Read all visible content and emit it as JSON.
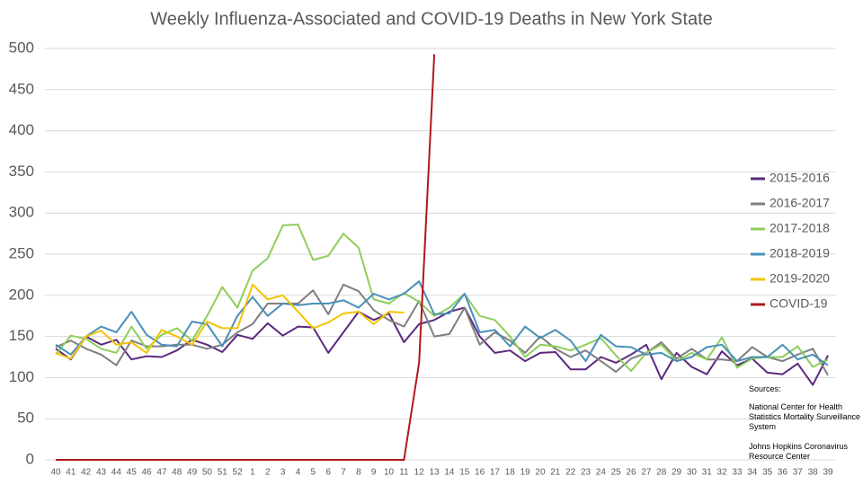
{
  "chart_data": {
    "type": "line",
    "title": "Weekly Influenza-Associated and COVID-19 Deaths in New York State",
    "categories": [
      "40",
      "41",
      "42",
      "43",
      "44",
      "45",
      "46",
      "47",
      "48",
      "49",
      "50",
      "51",
      "52",
      "1",
      "2",
      "3",
      "4",
      "5",
      "6",
      "7",
      "8",
      "9",
      "10",
      "11",
      "12",
      "13",
      "14",
      "15",
      "16",
      "17",
      "18",
      "19",
      "20",
      "21",
      "22",
      "23",
      "24",
      "25",
      "26",
      "27",
      "28",
      "29",
      "30",
      "31",
      "32",
      "33",
      "34",
      "35",
      "36",
      "37",
      "38",
      "39"
    ],
    "series": [
      {
        "name": "2015-2016",
        "color": "#5b2a7e",
        "values": [
          135,
          122,
          150,
          140,
          146,
          122,
          126,
          125,
          133,
          146,
          140,
          131,
          152,
          147,
          166,
          151,
          162,
          161,
          130,
          155,
          180,
          170,
          178,
          143,
          165,
          170,
          180,
          185,
          150,
          130,
          133,
          120,
          130,
          131,
          110,
          110,
          125,
          118,
          128,
          140,
          98,
          130,
          113,
          104,
          132,
          115,
          123,
          106,
          104,
          117,
          91,
          127
        ]
      },
      {
        "name": "2016-2017",
        "color": "#7f7f7f",
        "values": [
          137,
          145,
          135,
          128,
          115,
          145,
          138,
          138,
          140,
          140,
          135,
          140,
          155,
          165,
          190,
          190,
          190,
          206,
          177,
          213,
          205,
          182,
          170,
          162,
          193,
          150,
          153,
          185,
          140,
          155,
          145,
          130,
          150,
          135,
          125,
          133,
          120,
          107,
          123,
          130,
          143,
          123,
          135,
          122,
          122,
          120,
          137,
          125,
          120,
          128,
          135,
          103
        ]
      },
      {
        "name": "2017-2018",
        "color": "#8fce5a",
        "values": [
          128,
          151,
          147,
          135,
          130,
          162,
          135,
          152,
          160,
          145,
          175,
          210,
          185,
          230,
          245,
          285,
          286,
          243,
          248,
          275,
          258,
          195,
          190,
          203,
          192,
          175,
          185,
          202,
          175,
          170,
          150,
          125,
          140,
          138,
          133,
          140,
          148,
          127,
          108,
          130,
          140,
          120,
          130,
          122,
          149,
          112,
          123,
          125,
          125,
          138,
          113,
          122
        ]
      },
      {
        "name": "2018-2019",
        "color": "#4a90b8",
        "values": [
          140,
          128,
          150,
          162,
          155,
          180,
          152,
          140,
          138,
          168,
          165,
          138,
          175,
          198,
          175,
          190,
          188,
          190,
          190,
          194,
          185,
          202,
          195,
          202,
          217,
          177,
          178,
          202,
          155,
          158,
          138,
          162,
          148,
          158,
          145,
          120,
          152,
          138,
          137,
          128,
          130,
          120,
          125,
          137,
          140,
          120,
          125,
          125,
          140,
          122,
          128,
          115
        ]
      },
      {
        "name": "2019-2020",
        "color": "#f2c300",
        "values": [
          130,
          123,
          150,
          157,
          140,
          143,
          130,
          158,
          150,
          140,
          168,
          160,
          160,
          213,
          195,
          200,
          180,
          160,
          167,
          178,
          180,
          165,
          180,
          179,
          null,
          null,
          null,
          null,
          null,
          null,
          null,
          null,
          null,
          null,
          null,
          null,
          null,
          null,
          null,
          null,
          null,
          null,
          null,
          null,
          null,
          null,
          null,
          null,
          null,
          null,
          null,
          null
        ]
      },
      {
        "name": "COVID-19",
        "color": "#b01818",
        "values": [
          0,
          0,
          0,
          0,
          0,
          0,
          0,
          0,
          0,
          0,
          0,
          0,
          0,
          0,
          0,
          0,
          0,
          0,
          0,
          0,
          0,
          0,
          0,
          0,
          118,
          493,
          null,
          null,
          null,
          null,
          null,
          null,
          null,
          null,
          null,
          null,
          null,
          null,
          null,
          null,
          null,
          null,
          null,
          null,
          null,
          null,
          null,
          null,
          null,
          null,
          null,
          null
        ]
      }
    ],
    "ylim": [
      0,
      500
    ],
    "yticks": [
      0,
      50,
      100,
      150,
      200,
      250,
      300,
      350,
      400,
      450,
      500
    ],
    "grid": true,
    "legend": "right",
    "sources_title": "Sources:",
    "sources": [
      "National Center for Health Statistics Mortality Surveillance System",
      "Johns Hopkins Coronavirus Resource Center"
    ]
  }
}
